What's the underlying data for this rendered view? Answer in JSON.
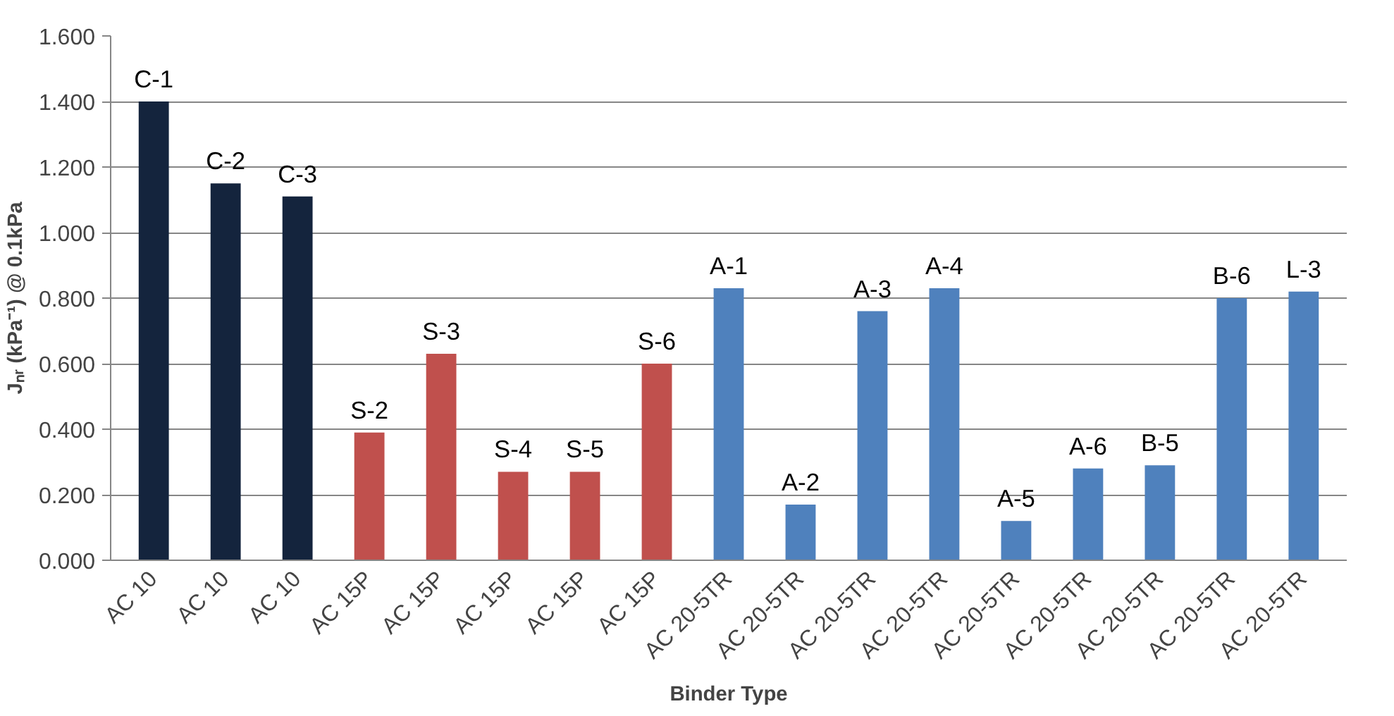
{
  "chart_data": {
    "type": "bar",
    "xlabel": "Binder Type",
    "ylabel": "Jₙᵣ (kPa⁻¹) @ 0.1kPa",
    "categories": [
      "AC 10",
      "AC 10",
      "AC 10",
      "AC 15P",
      "AC 15P",
      "AC 15P",
      "AC 15P",
      "AC 15P",
      "AC 20-5TR",
      "AC 20-5TR",
      "AC 20-5TR",
      "AC 20-5TR",
      "AC 20-5TR",
      "AC 20-5TR",
      "AC 20-5TR",
      "AC 20-5TR",
      "AC 20-5TR"
    ],
    "values": [
      1.4,
      1.15,
      1.11,
      0.39,
      0.63,
      0.27,
      0.27,
      0.6,
      0.83,
      0.17,
      0.76,
      0.83,
      0.12,
      0.28,
      0.29,
      0.8,
      0.82
    ],
    "colors": [
      "#14243d",
      "#14243d",
      "#14243d",
      "#c0504d",
      "#c0504d",
      "#c0504d",
      "#c0504d",
      "#c0504d",
      "#4f81bd",
      "#4f81bd",
      "#4f81bd",
      "#4f81bd",
      "#4f81bd",
      "#4f81bd",
      "#4f81bd",
      "#4f81bd",
      "#4f81bd"
    ],
    "value_labels": [
      "C-1",
      "C-2",
      "C-3",
      "S-2",
      "S-3",
      "S-4",
      "S-5",
      "S-6",
      "A-1",
      "A-2",
      "A-3",
      "A-4",
      "A-5",
      "A-6",
      "B-5",
      "B-6",
      "L-3"
    ],
    "ylim": [
      0,
      1.6
    ],
    "yticks": [
      {
        "value": 0,
        "label": "0.000"
      },
      {
        "value": 0.2,
        "label": "0.200"
      },
      {
        "value": 0.4,
        "label": "0.400"
      },
      {
        "value": 0.6,
        "label": "0.600"
      },
      {
        "value": 0.8,
        "label": "0.800"
      },
      {
        "value": 1.0,
        "label": "1.000"
      },
      {
        "value": 1.2,
        "label": "1.200"
      },
      {
        "value": 1.4,
        "label": "1.400"
      },
      {
        "value": 1.6,
        "label": "1.600"
      }
    ],
    "grid": "y"
  }
}
